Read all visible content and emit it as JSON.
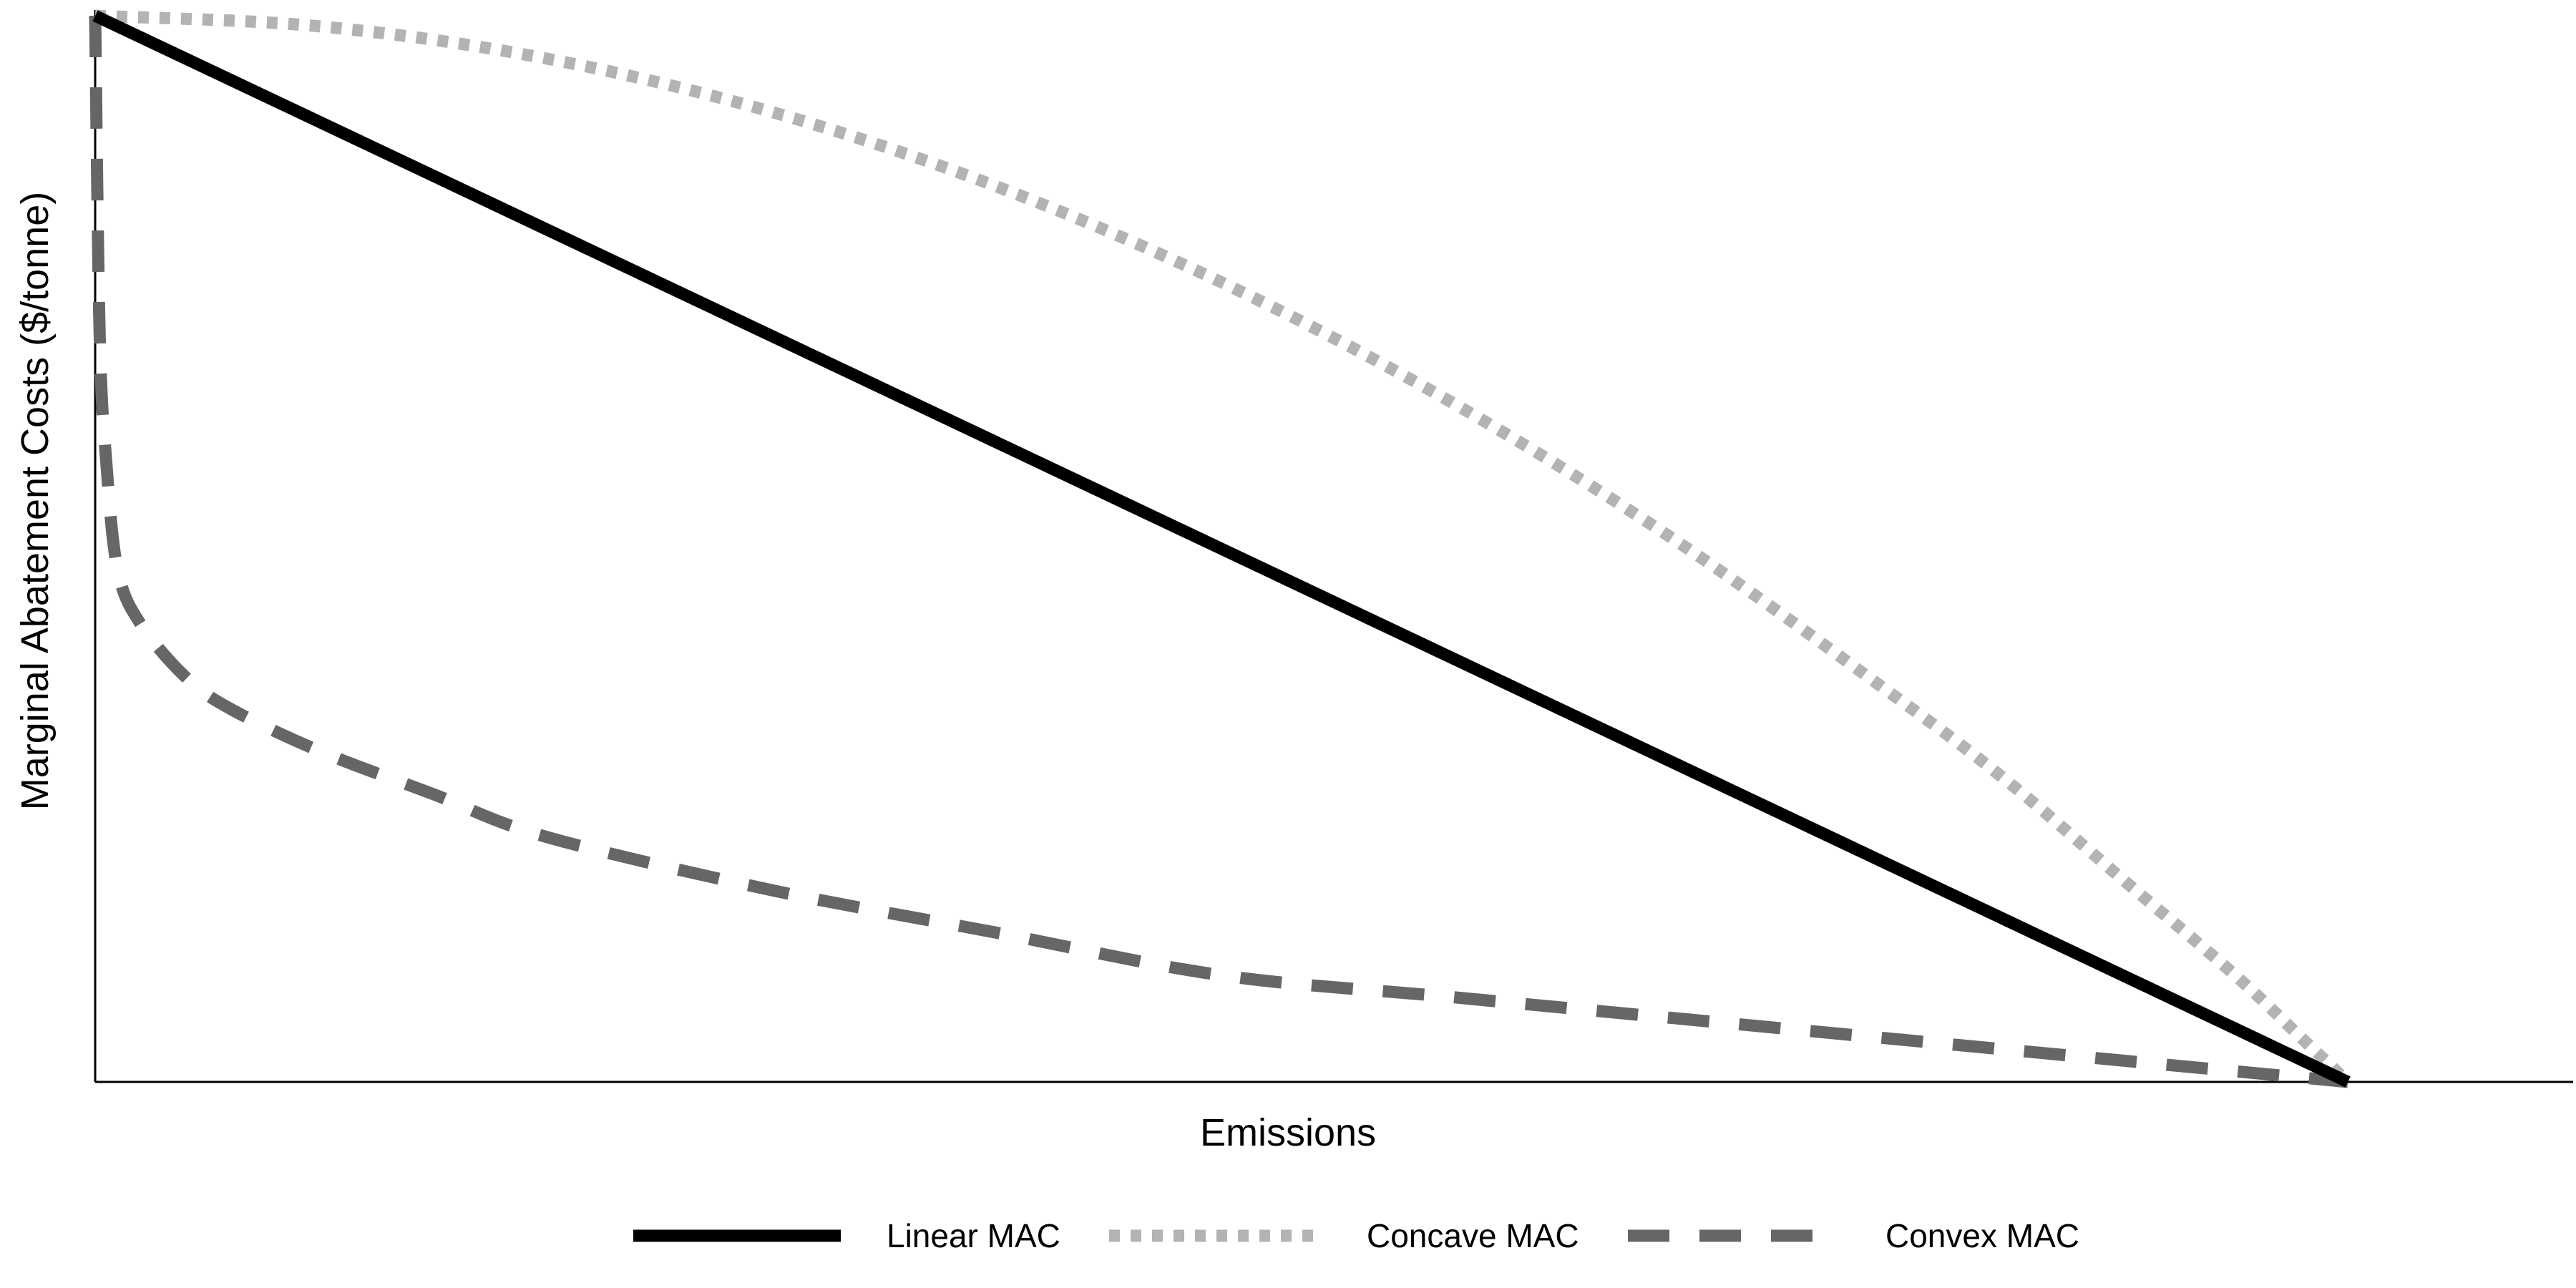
{
  "chart_data": {
    "type": "line",
    "title": "",
    "xlabel": "Emissions",
    "ylabel": "Marginal Abatement Costs ($/tonne)",
    "xlim": [
      0,
      1.1
    ],
    "ylim": [
      0,
      1
    ],
    "grid": false,
    "ticks": false,
    "legend_position": "bottom",
    "series": [
      {
        "name": "Linear MAC",
        "color": "#000000",
        "style": "solid",
        "x": [
          0,
          1
        ],
        "y": [
          1,
          0
        ]
      },
      {
        "name": "Concave MAC",
        "color": "#B3B3B3",
        "style": "dotted",
        "x": [
          0,
          0.1,
          0.2,
          0.3,
          0.4,
          0.5,
          0.6,
          0.7,
          0.8,
          0.85,
          0.9,
          0.95,
          0.98,
          1.0
        ],
        "y": [
          1,
          0.99,
          0.96,
          0.91,
          0.84,
          0.75,
          0.64,
          0.51,
          0.36,
          0.28,
          0.19,
          0.1,
          0.04,
          0
        ]
      },
      {
        "name": "Convex MAC",
        "color": "#666666",
        "style": "dashed",
        "x": [
          0,
          0.002,
          0.005,
          0.01,
          0.02,
          0.04,
          0.06,
          0.1,
          0.15,
          0.2,
          0.3,
          0.4,
          0.5,
          0.6,
          0.7,
          0.8,
          0.9,
          1.0
        ],
        "y": [
          1,
          0.7,
          0.58,
          0.48,
          0.43,
          0.38,
          0.35,
          0.31,
          0.27,
          0.23,
          0.18,
          0.14,
          0.1,
          0.08,
          0.06,
          0.04,
          0.02,
          0
        ]
      }
    ]
  }
}
